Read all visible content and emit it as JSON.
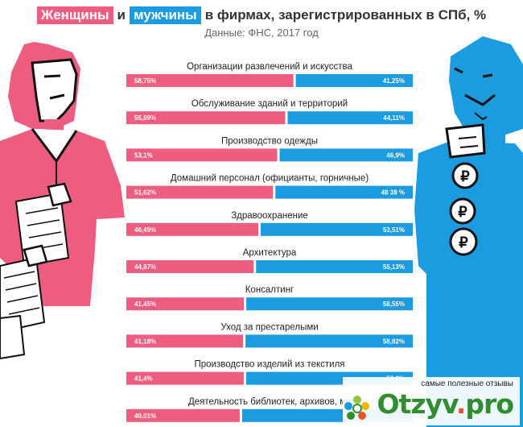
{
  "header": {
    "title_women": "Женщины",
    "title_and": "и",
    "title_men": "мужчины",
    "title_rest": "в фирмах, зарегистрированных в СПб, %",
    "subtitle": "Данные: ФНС, 2017 год"
  },
  "colors": {
    "women": "#ee5d80",
    "men": "#1b9be0"
  },
  "chart_data": {
    "type": "bar",
    "orientation": "horizontal",
    "stacked": true,
    "categories": [
      "Организации развлечений и искусства",
      "Обслуживание зданий и территорий",
      "Производство одежды",
      "Домашний персонал (официанты, горничные)",
      "Здравоохранение",
      "Архитектура",
      "Консалтинг",
      "Уход за престарелыми",
      "Производство изделий из текстиля",
      "Деятельность библиотек, архивов, му"
    ],
    "series": [
      {
        "name": "Женщины",
        "values": [
          58.75,
          55.89,
          53.1,
          51.62,
          46.49,
          44.87,
          41.45,
          41.18,
          41.4,
          40.01
        ],
        "labels": [
          "58,75%",
          "55,89%",
          "53,1%",
          "51,62%",
          "46,49%",
          "44,87%",
          "41,45%",
          "41,18%",
          "41,4%",
          "40,01%"
        ]
      },
      {
        "name": "мужчины",
        "values": [
          41.25,
          44.11,
          46.9,
          48.38,
          53.51,
          55.13,
          58.55,
          58.82,
          58.6,
          59.99
        ],
        "labels": [
          "41,25%",
          "44,11%",
          "46,9%",
          "48 38 %",
          "53,51%",
          "55,13%",
          "58,55%",
          "58,82%",
          "58,6%",
          ""
        ]
      }
    ],
    "xlim": [
      0,
      100
    ]
  },
  "watermark": {
    "tagline": "самые полезные отзывы",
    "logo_main": "Otzyv",
    "logo_dot": ".",
    "logo_tld": "pro"
  }
}
